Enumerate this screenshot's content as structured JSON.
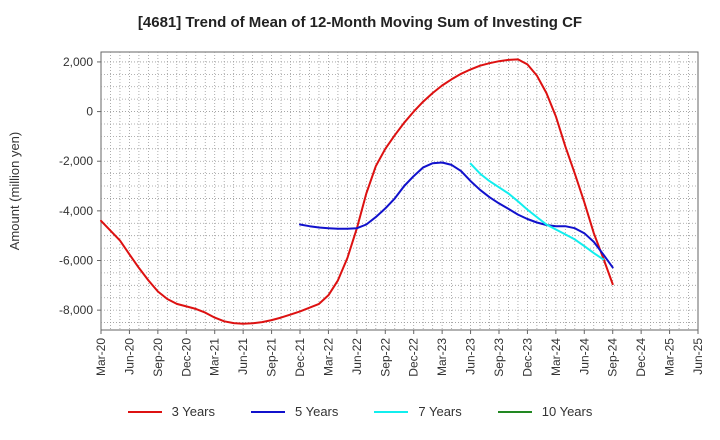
{
  "chart_data": {
    "type": "line",
    "title": "[4681]  Trend of Mean of 12-Month Moving Sum of Investing CF",
    "xlabel": "",
    "ylabel": "Amount (million yen)",
    "ylim": [
      -8800,
      2400
    ],
    "yticks": [
      2000,
      0,
      -2000,
      -4000,
      -6000,
      -8000
    ],
    "ytick_labels": [
      "2,000",
      "0",
      "-2,000",
      "-4,000",
      "-6,000",
      "-8,000"
    ],
    "x_categories": [
      "Mar-20",
      "Jun-20",
      "Sep-20",
      "Dec-20",
      "Mar-21",
      "Jun-21",
      "Sep-21",
      "Dec-21",
      "Mar-22",
      "Jun-22",
      "Sep-22",
      "Dec-22",
      "Mar-23",
      "Jun-23",
      "Sep-23",
      "Dec-23",
      "Mar-24",
      "Jun-24",
      "Sep-24",
      "Dec-24",
      "Mar-25",
      "Jun-25"
    ],
    "grid": true,
    "series": [
      {
        "name": "3 Years",
        "color": "#dd1111",
        "start_index": 0,
        "values": [
          -4400,
          -4800,
          -5200,
          -5750,
          -6300,
          -6800,
          -7250,
          -7550,
          -7750,
          -7850,
          -7950,
          -8100,
          -8300,
          -8450,
          -8520,
          -8550,
          -8530,
          -8480,
          -8400,
          -8300,
          -8180,
          -8050,
          -7900,
          -7750,
          -7400,
          -6800,
          -5900,
          -4700,
          -3300,
          -2200,
          -1500,
          -950,
          -450,
          0,
          400,
          750,
          1050,
          1300,
          1520,
          1700,
          1850,
          1950,
          2030,
          2080,
          2100,
          1900,
          1450,
          750,
          -200,
          -1400,
          -2500,
          -3650,
          -4900,
          -5900,
          -6950
        ]
      },
      {
        "name": "5 Years",
        "color": "#1111cc",
        "start_index": 21,
        "values": [
          -4550,
          -4620,
          -4670,
          -4700,
          -4720,
          -4720,
          -4700,
          -4550,
          -4250,
          -3900,
          -3500,
          -3000,
          -2600,
          -2250,
          -2080,
          -2050,
          -2150,
          -2400,
          -2800,
          -3150,
          -3450,
          -3700,
          -3920,
          -4150,
          -4330,
          -4470,
          -4570,
          -4620,
          -4620,
          -4700,
          -4900,
          -5250,
          -5750,
          -6280
        ]
      },
      {
        "name": "7 Years",
        "color": "#11eeee",
        "start_index": 39,
        "values": [
          -2100,
          -2500,
          -2800,
          -3050,
          -3300,
          -3620,
          -3950,
          -4250,
          -4550,
          -4750,
          -4950,
          -5150,
          -5420,
          -5700,
          -5950
        ]
      },
      {
        "name": "10 Years",
        "color": "#228822",
        "start_index": 0,
        "values": []
      }
    ]
  }
}
